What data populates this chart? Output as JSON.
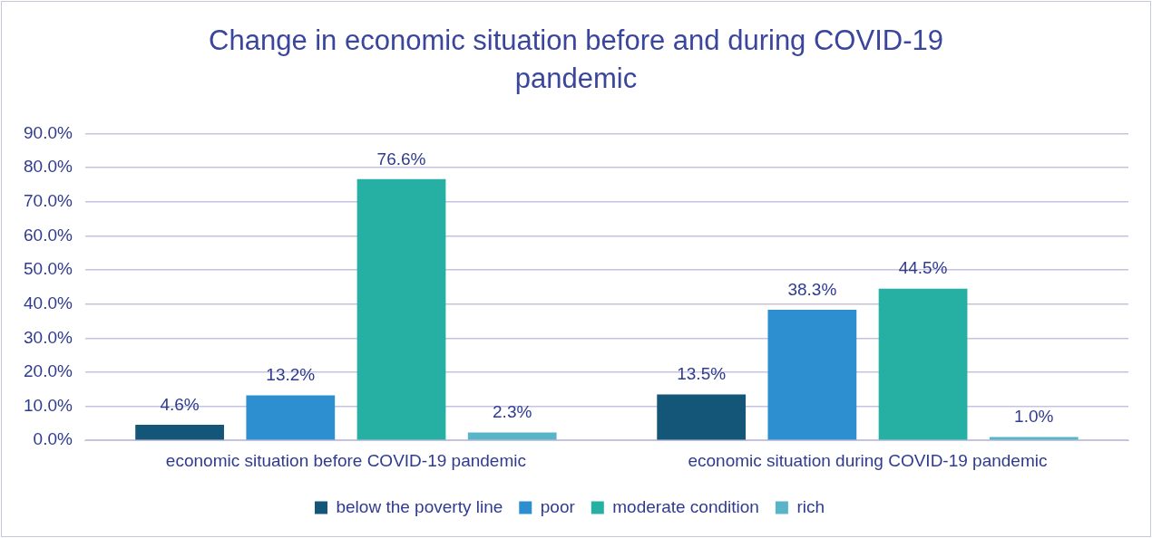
{
  "chart_data": {
    "type": "bar",
    "title": "Change in economic situation before and during COVID-19 pandemic",
    "categories": [
      "economic situation before COVID-19 pandemic",
      "economic situation during COVID-19 pandemic"
    ],
    "series": [
      {
        "name": "below the poverty line",
        "color": "#135677",
        "values": [
          4.6,
          13.5
        ],
        "value_labels": [
          "4.6%",
          "13.5%"
        ]
      },
      {
        "name": "poor",
        "color": "#2e8fd0",
        "values": [
          13.2,
          38.3
        ],
        "value_labels": [
          "13.2%",
          "38.3%"
        ]
      },
      {
        "name": "moderate condition",
        "color": "#26b0a4",
        "values": [
          76.6,
          44.5
        ],
        "value_labels": [
          "76.6%",
          "44.5%"
        ]
      },
      {
        "name": "rich",
        "color": "#5ab4c8",
        "values": [
          2.3,
          1.0
        ],
        "value_labels": [
          "2.3%",
          "1.0%"
        ]
      }
    ],
    "ylim": [
      0,
      90
    ],
    "yticks": [
      {
        "value": 0,
        "label": "0.0%"
      },
      {
        "value": 10,
        "label": "10.0%"
      },
      {
        "value": 20,
        "label": "20.0%"
      },
      {
        "value": 30,
        "label": "30.0%"
      },
      {
        "value": 40,
        "label": "40.0%"
      },
      {
        "value": 50,
        "label": "50.0%"
      },
      {
        "value": 60,
        "label": "60.0%"
      },
      {
        "value": 70,
        "label": "70.0%"
      },
      {
        "value": 80,
        "label": "80.0%"
      },
      {
        "value": 90,
        "label": "90.0%"
      }
    ],
    "grid": "y",
    "legend": "bottom"
  }
}
